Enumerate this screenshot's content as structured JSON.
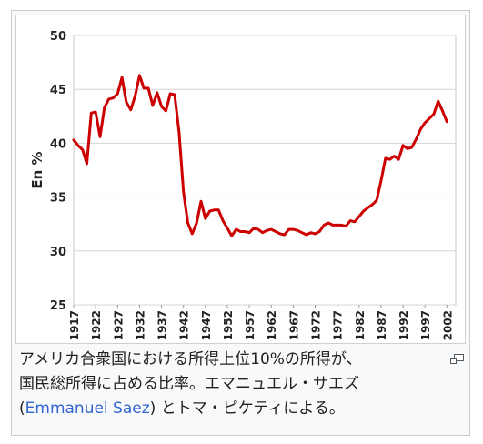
{
  "chart_data": {
    "type": "line",
    "title": "",
    "xlabel": "",
    "ylabel": "En %",
    "ylim": [
      25,
      50
    ],
    "xlim": [
      1917,
      2004
    ],
    "yticks": [
      25,
      30,
      35,
      40,
      45,
      50
    ],
    "xticks": [
      1917,
      1922,
      1927,
      1932,
      1937,
      1942,
      1947,
      1952,
      1957,
      1962,
      1967,
      1972,
      1977,
      1982,
      1987,
      1992,
      1997,
      2002
    ],
    "grid": "horizontal",
    "legend": "none",
    "series": [
      {
        "name": "",
        "color": "#cc0000",
        "x": [
          1917,
          1918,
          1919,
          1920,
          1921,
          1922,
          1923,
          1924,
          1925,
          1926,
          1927,
          1928,
          1929,
          1930,
          1931,
          1932,
          1933,
          1934,
          1935,
          1936,
          1937,
          1938,
          1939,
          1940,
          1941,
          1942,
          1943,
          1944,
          1945,
          1946,
          1947,
          1948,
          1949,
          1950,
          1951,
          1952,
          1953,
          1954,
          1955,
          1956,
          1957,
          1958,
          1959,
          1960,
          1961,
          1962,
          1963,
          1964,
          1965,
          1966,
          1967,
          1968,
          1969,
          1970,
          1971,
          1972,
          1973,
          1974,
          1975,
          1976,
          1977,
          1978,
          1979,
          1980,
          1981,
          1982,
          1983,
          1984,
          1985,
          1986,
          1987,
          1988,
          1989,
          1990,
          1991,
          1992,
          1993,
          1994,
          1995,
          1996,
          1997,
          1998,
          1999,
          2000,
          2001,
          2002
        ],
        "values": [
          40.3,
          39.8,
          39.4,
          38.1,
          42.8,
          42.9,
          40.6,
          43.3,
          44.1,
          44.2,
          44.6,
          46.1,
          43.8,
          43.1,
          44.4,
          46.3,
          45.1,
          45.1,
          43.5,
          44.7,
          43.4,
          43.0,
          44.6,
          44.5,
          41.0,
          35.5,
          32.6,
          31.6,
          32.6,
          34.6,
          33.0,
          33.7,
          33.8,
          33.8,
          32.8,
          32.1,
          31.4,
          32.0,
          31.8,
          31.8,
          31.7,
          32.1,
          32.0,
          31.7,
          31.9,
          32.0,
          31.8,
          31.6,
          31.5,
          32.0,
          32.0,
          31.9,
          31.7,
          31.5,
          31.7,
          31.6,
          31.8,
          32.4,
          32.6,
          32.4,
          32.4,
          32.4,
          32.3,
          32.8,
          32.7,
          33.2,
          33.7,
          34.0,
          34.3,
          34.7,
          36.5,
          38.6,
          38.5,
          38.8,
          38.5,
          39.8,
          39.5,
          39.6,
          40.4,
          41.3,
          41.9,
          42.3,
          42.7,
          43.9,
          43.0,
          42.0
        ]
      }
    ]
  },
  "caption": {
    "line1": "アメリカ合衆国における所得上位10%の所得が、",
    "line2": "国民総所得に占める比率。エマニュエル・サエズ",
    "line3_open": "(",
    "link": "Emmanuel Saez",
    "line3_rest": ") とトマ・ピケティによる。"
  },
  "icons": {
    "magnify": "magnify-clip-icon"
  }
}
